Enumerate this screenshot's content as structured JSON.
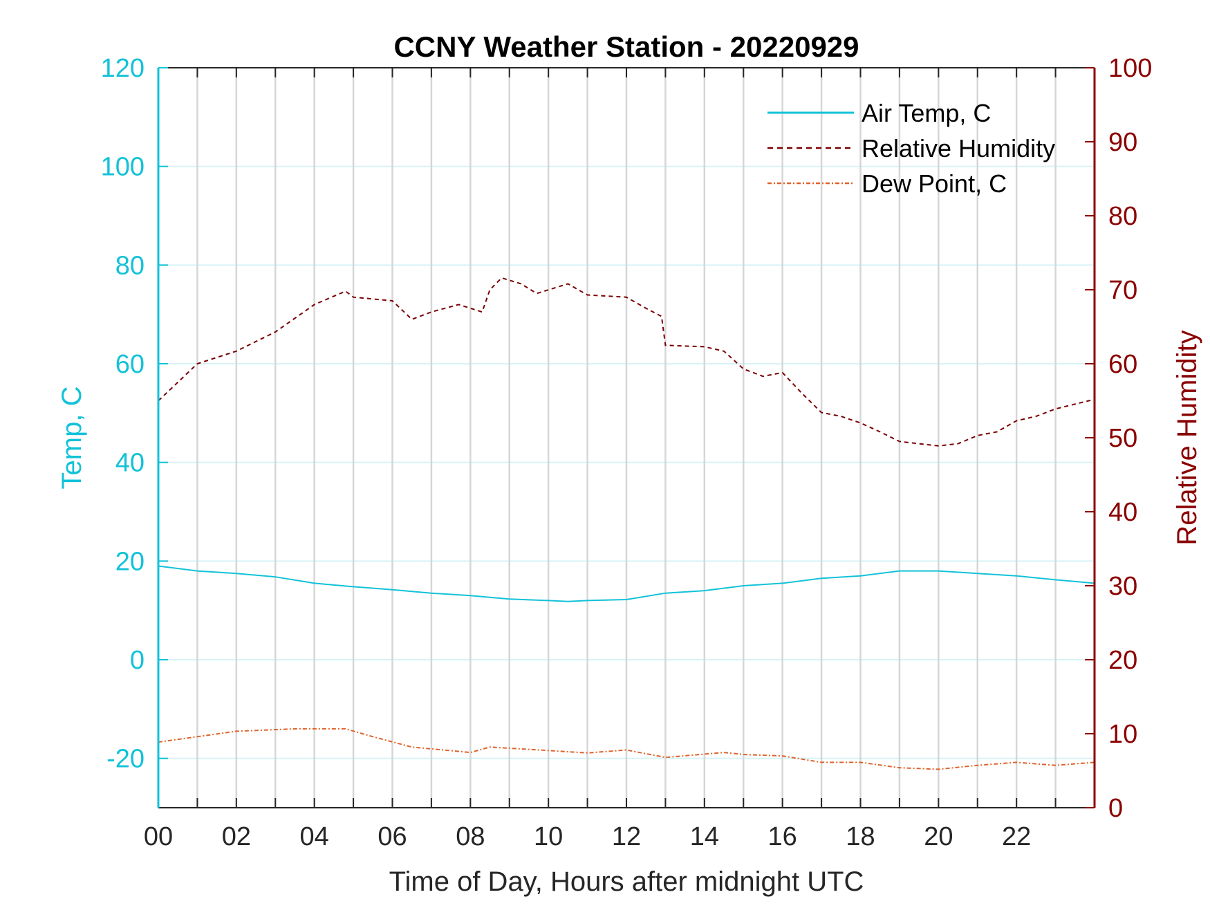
{
  "chart_data": {
    "type": "line",
    "title": "CCNY Weather Station - 20220929",
    "xlabel": "Time of Day, Hours after midnight UTC",
    "ylabel_left": "Temp, C",
    "ylabel_right": "Relative Humidity",
    "xlim": [
      0,
      24
    ],
    "ylim_left": [
      -30,
      120
    ],
    "ylim_right": [
      0,
      100
    ],
    "x_tick_labels": [
      "00",
      "02",
      "04",
      "06",
      "08",
      "10",
      "12",
      "14",
      "16",
      "18",
      "20",
      "22"
    ],
    "x_tick_values": [
      0,
      2,
      4,
      6,
      8,
      10,
      12,
      14,
      16,
      18,
      20,
      22
    ],
    "y_left_ticks": [
      -20,
      0,
      20,
      40,
      60,
      80,
      100,
      120
    ],
    "y_right_ticks": [
      0,
      10,
      20,
      30,
      40,
      50,
      60,
      70,
      80,
      90,
      100
    ],
    "grid": true,
    "legend_placement": "top-right",
    "colors": {
      "left_axis": "#12c2d8",
      "right_axis": "#8b0000",
      "air_temp": "#12c2d8",
      "rh": "#7a0000",
      "dew": "#e0622a",
      "vgrid": "#d6d6d6",
      "hgrid": "#d8f3f7"
    },
    "series": [
      {
        "name": "Air Temp, C",
        "axis": "left",
        "style": "solid",
        "x": [
          0,
          1,
          2,
          3,
          4,
          5,
          6,
          7,
          8,
          9,
          10,
          10.5,
          11,
          12,
          13,
          14,
          15,
          16,
          17,
          18,
          19,
          20,
          21,
          22,
          23,
          24
        ],
        "y": [
          19,
          18,
          17.5,
          16.8,
          15.5,
          14.8,
          14.2,
          13.5,
          13,
          12.3,
          12,
          11.8,
          12,
          12.2,
          13.5,
          14,
          15,
          15.5,
          16.5,
          17,
          18,
          18,
          17.5,
          17,
          16.2,
          15.5
        ]
      },
      {
        "name": "Relative Humidity",
        "axis": "right",
        "style": "dashed",
        "x": [
          0,
          1,
          2,
          2.5,
          3,
          4,
          4.8,
          5,
          6,
          6.5,
          7,
          7.7,
          8.3,
          8.5,
          8.8,
          9.3,
          9.7,
          10.5,
          11,
          12,
          12.5,
          12.9,
          13,
          14,
          14.5,
          15,
          15.5,
          16,
          16.5,
          17,
          17.5,
          18,
          18.5,
          19,
          19.5,
          20,
          20.5,
          21,
          21.5,
          22,
          22.5,
          23,
          24
        ],
        "y": [
          55,
          60,
          61.7,
          63,
          64.3,
          68,
          69.8,
          69,
          68.5,
          66,
          67,
          68,
          67,
          70,
          71.6,
          70.8,
          69.5,
          70.8,
          69.3,
          69,
          67.5,
          66.4,
          62.5,
          62.3,
          61.7,
          59.3,
          58.3,
          58.8,
          56,
          53.4,
          52.9,
          52,
          50.8,
          49.5,
          49.2,
          48.9,
          49.2,
          50.3,
          50.8,
          52.3,
          52.9,
          53.9,
          55.2
        ]
      },
      {
        "name": "Dew Point, C",
        "axis": "left",
        "style": "dashdot",
        "x": [
          0,
          2,
          3.5,
          4.8,
          5.5,
          6.5,
          8,
          8.5,
          10,
          11,
          12,
          13,
          14.5,
          15,
          16,
          17,
          18,
          19,
          20,
          21,
          22,
          23,
          24
        ],
        "y": [
          -16.7,
          -14.5,
          -14,
          -14,
          -15.6,
          -17.7,
          -18.8,
          -17.7,
          -18.4,
          -18.9,
          -18.3,
          -19.8,
          -18.8,
          -19.2,
          -19.5,
          -20.8,
          -20.8,
          -21.9,
          -22.2,
          -21.4,
          -20.8,
          -21.4,
          -20.8
        ]
      }
    ]
  }
}
